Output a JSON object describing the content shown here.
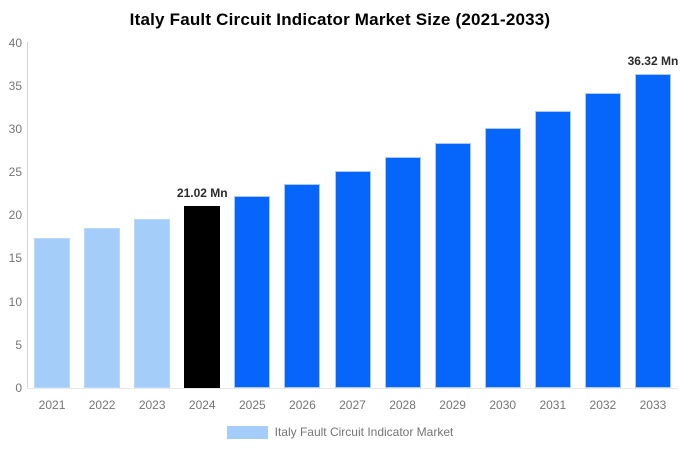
{
  "title": "Italy Fault Circuit Indicator Market Size (2021-2033)",
  "legend": {
    "label": "Italy Fault Circuit Indicator Market",
    "swatch_color": "#a5cdfa"
  },
  "colors": {
    "historical_bar": "#a5cdfa",
    "base_year_bar": "#000000",
    "forecast_bar": "#0666fb",
    "forecast_bar_border": "#aac9f3",
    "axis_text": "#757575",
    "value_label_text": "#2b2b2b",
    "axis_line": "#d6d6d6"
  },
  "chart_data": {
    "type": "bar",
    "title": "Italy Fault Circuit Indicator Market Size (2021-2033)",
    "categories": [
      "2021",
      "2022",
      "2023",
      "2024",
      "2025",
      "2026",
      "2027",
      "2028",
      "2029",
      "2030",
      "2031",
      "2032",
      "2033"
    ],
    "values": [
      17.4,
      18.5,
      19.6,
      21.02,
      22.2,
      23.6,
      25.1,
      26.7,
      28.4,
      30.1,
      32.1,
      34.1,
      36.32
    ],
    "bar_colors": [
      "#a5cdfa",
      "#a5cdfa",
      "#a5cdfa",
      "#000000",
      "#0666fb",
      "#0666fb",
      "#0666fb",
      "#0666fb",
      "#0666fb",
      "#0666fb",
      "#0666fb",
      "#0666fb",
      "#0666fb"
    ],
    "bar_border_colors": [
      "#b9d8fb",
      "#b9d8fb",
      "#b9d8fb",
      "#000000",
      "#aac9f3",
      "#aac9f3",
      "#aac9f3",
      "#aac9f3",
      "#aac9f3",
      "#aac9f3",
      "#aac9f3",
      "#aac9f3",
      "#aac9f3"
    ],
    "bar_labels": [
      "",
      "",
      "",
      "21.02 Mn",
      "",
      "",
      "",
      "",
      "",
      "",
      "",
      "",
      "36.32 Mn"
    ],
    "unit": "Mn",
    "xlabel": "",
    "ylabel": "",
    "ylim": [
      0,
      40
    ],
    "yticks": [
      0,
      5,
      10,
      15,
      20,
      25,
      30,
      35,
      40
    ],
    "grid": false,
    "legend_entries": [
      "Italy Fault Circuit Indicator Market"
    ],
    "legend_position": "bottom"
  }
}
